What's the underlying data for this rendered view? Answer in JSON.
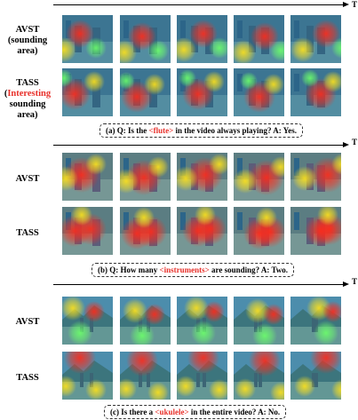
{
  "axis_label": "T",
  "sections": [
    {
      "rows": [
        {
          "label_line1": "AVST",
          "label_line2": "(sounding area)",
          "label_highlight": "",
          "label_line3": ""
        },
        {
          "label_line1": "TASS",
          "label_line2": "(",
          "label_highlight": "Interesting",
          "label_line3": "sounding area)"
        }
      ],
      "caption": {
        "prefix": "(a) Q: Is the ",
        "highlight": "<flute>",
        "suffix": " in the video always playing? A: Yes."
      }
    },
    {
      "rows": [
        {
          "label_line1": "AVST",
          "label_line2": "",
          "label_highlight": "",
          "label_line3": ""
        },
        {
          "label_line1": "TASS",
          "label_line2": "",
          "label_highlight": "",
          "label_line3": ""
        }
      ],
      "caption": {
        "prefix": "(b) Q: How many ",
        "highlight": "<instruments>",
        "suffix": " are sounding?  A: Two."
      }
    },
    {
      "rows": [
        {
          "label_line1": "AVST",
          "label_line2": "",
          "label_highlight": "",
          "label_line3": ""
        },
        {
          "label_line1": "TASS",
          "label_line2": "",
          "label_highlight": "",
          "label_line3": ""
        }
      ],
      "caption": {
        "prefix": "(c) Is there a ",
        "highlight": "<ukulele>",
        "suffix": " in the entire video? A: No."
      }
    }
  ],
  "colors": {
    "highlight": "#e8302a"
  }
}
